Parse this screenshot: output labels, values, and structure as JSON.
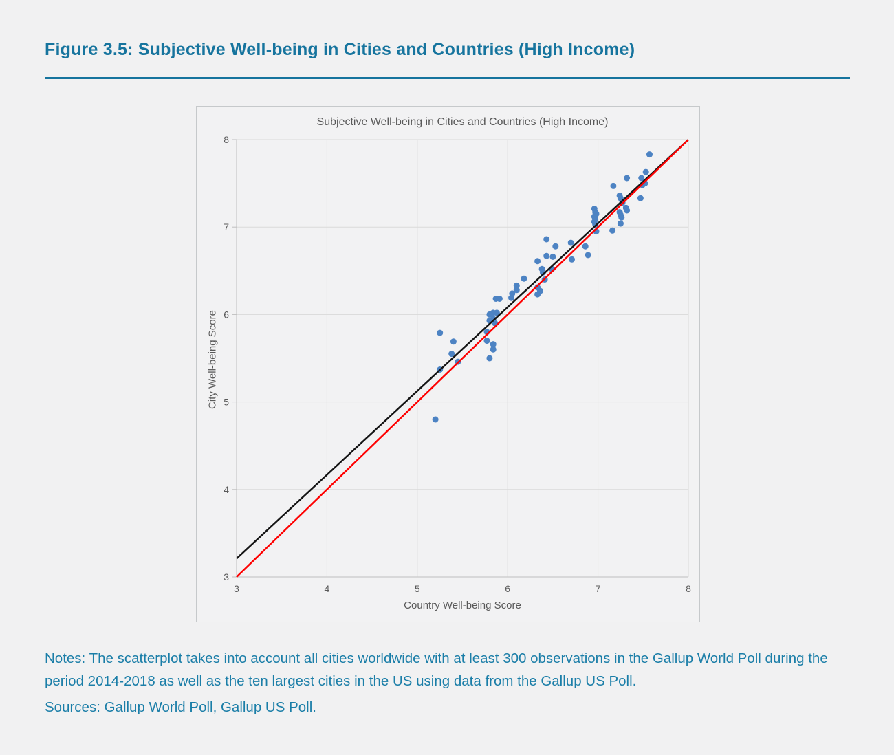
{
  "page": {
    "background": "#f1f1f2",
    "heading_color": "#16749e",
    "figure_heading": "Figure 3.5: Subjective Well-being in Cities and Countries (High Income)",
    "notes": "Notes: The scatterplot takes into account all cities worldwide with at least 300 observations in the Gallup World Poll during the period 2014-2018 as well as the ten largest cities in the US using data from the Gallup US Poll.",
    "sources": "Sources: Gallup World Poll, Gallup US Poll."
  },
  "chart_data": {
    "type": "scatter",
    "title": "Subjective Well-being in Cities and Countries (High Income)",
    "xlabel": "Country Well-being Score",
    "ylabel": "City Well-being Score",
    "xlim": [
      3,
      8
    ],
    "ylim": [
      3,
      8
    ],
    "xticks": [
      3,
      4,
      5,
      6,
      7,
      8
    ],
    "yticks": [
      3,
      4,
      5,
      6,
      7,
      8
    ],
    "grid": true,
    "grid_color": "#d9d9d9",
    "axis_color": "#bfbfbf",
    "tick_label_color": "#595959",
    "point_color": "#4d83c3",
    "point_radius": 4.5,
    "points": [
      [
        5.2,
        4.8
      ],
      [
        5.25,
        5.79
      ],
      [
        5.25,
        5.37
      ],
      [
        5.4,
        5.69
      ],
      [
        5.38,
        5.55
      ],
      [
        5.45,
        5.46
      ],
      [
        5.77,
        5.8
      ],
      [
        5.77,
        5.7
      ],
      [
        5.84,
        5.66
      ],
      [
        5.84,
        5.6
      ],
      [
        5.8,
        5.5
      ],
      [
        5.8,
        5.93
      ],
      [
        5.84,
        5.95
      ],
      [
        5.86,
        5.9
      ],
      [
        5.8,
        6.0
      ],
      [
        5.84,
        6.02
      ],
      [
        5.88,
        6.02
      ],
      [
        5.87,
        6.18
      ],
      [
        5.91,
        6.18
      ],
      [
        6.04,
        6.19
      ],
      [
        6.05,
        6.24
      ],
      [
        6.1,
        6.33
      ],
      [
        6.1,
        6.28
      ],
      [
        6.18,
        6.41
      ],
      [
        6.33,
        6.23
      ],
      [
        6.36,
        6.27
      ],
      [
        6.33,
        6.31
      ],
      [
        6.41,
        6.4
      ],
      [
        6.38,
        6.52
      ],
      [
        6.39,
        6.48
      ],
      [
        6.49,
        6.52
      ],
      [
        6.33,
        6.61
      ],
      [
        6.43,
        6.67
      ],
      [
        6.5,
        6.66
      ],
      [
        6.43,
        6.86
      ],
      [
        6.53,
        6.78
      ],
      [
        6.7,
        6.82
      ],
      [
        6.71,
        6.63
      ],
      [
        6.86,
        6.78
      ],
      [
        6.89,
        6.68
      ],
      [
        6.96,
        7.21
      ],
      [
        6.97,
        7.17
      ],
      [
        6.98,
        7.15
      ],
      [
        6.96,
        7.12
      ],
      [
        6.97,
        7.09
      ],
      [
        6.96,
        7.06
      ],
      [
        6.97,
        7.03
      ],
      [
        6.98,
        6.95
      ],
      [
        7.16,
        6.96
      ],
      [
        7.17,
        7.47
      ],
      [
        7.24,
        7.36
      ],
      [
        7.25,
        7.33
      ],
      [
        7.27,
        7.28
      ],
      [
        7.24,
        7.17
      ],
      [
        7.25,
        7.14
      ],
      [
        7.26,
        7.11
      ],
      [
        7.25,
        7.04
      ],
      [
        7.31,
        7.22
      ],
      [
        7.32,
        7.19
      ],
      [
        7.32,
        7.56
      ],
      [
        7.47,
        7.33
      ],
      [
        7.48,
        7.56
      ],
      [
        7.49,
        7.48
      ],
      [
        7.52,
        7.5
      ],
      [
        7.53,
        7.63
      ],
      [
        7.57,
        7.83
      ]
    ],
    "lines": [
      {
        "name": "trend-line",
        "color": "#141414",
        "width": 2.5,
        "from": [
          3,
          3.21
        ],
        "to": [
          8,
          8
        ]
      },
      {
        "name": "identity-line",
        "color": "#fe0000",
        "width": 2.5,
        "from": [
          3,
          3.0
        ],
        "to": [
          8,
          8
        ]
      }
    ]
  }
}
